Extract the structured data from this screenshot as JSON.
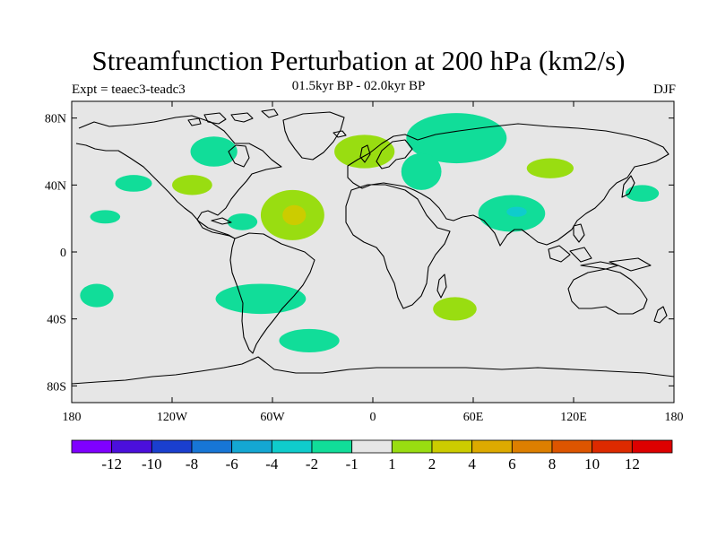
{
  "title": "Streamfunction Perturbation at 200 hPa (km2/s)",
  "subtitle_left": "Expt = teaec3-teadc3",
  "subtitle_center": "01.5kyr BP - 02.0kyr BP",
  "subtitle_right": "DJF",
  "chart_data": {
    "type": "heatmap",
    "projection": "cylindrical-equidistant",
    "xlim": [
      -180,
      180
    ],
    "ylim": [
      -90,
      90
    ],
    "x_ticks": [
      {
        "lon": -180,
        "label": "180"
      },
      {
        "lon": -120,
        "label": "120W"
      },
      {
        "lon": -60,
        "label": "60W"
      },
      {
        "lon": 0,
        "label": "0"
      },
      {
        "lon": 60,
        "label": "60E"
      },
      {
        "lon": 120,
        "label": "120E"
      },
      {
        "lon": 180,
        "label": "180"
      }
    ],
    "y_ticks": [
      {
        "lat": 80,
        "label": "80N"
      },
      {
        "lat": 40,
        "label": "40N"
      },
      {
        "lat": 0,
        "label": "0"
      },
      {
        "lat": -40,
        "label": "40S"
      },
      {
        "lat": -80,
        "label": "80S"
      }
    ],
    "colorbar": {
      "colors": [
        "#7f00ff",
        "#4b0fdc",
        "#1a3fcf",
        "#1776d6",
        "#14a7d3",
        "#0fcccc",
        "#11dd99",
        "#e6e6e6",
        "#99dd11",
        "#cccc00",
        "#ddaa00",
        "#dd7f00",
        "#dd5500",
        "#dd2a00",
        "#dd0000"
      ],
      "tick_labels": [
        "-12",
        "-10",
        "-8",
        "-6",
        "-4",
        "-2",
        "-1",
        "1",
        "2",
        "4",
        "6",
        "8",
        "10",
        "12"
      ]
    },
    "anomalies": [
      {
        "lon": -95,
        "lat": 60,
        "rlon": 14,
        "rlat": 9,
        "level": "-1"
      },
      {
        "lon": -143,
        "lat": 41,
        "rlon": 11,
        "rlat": 5,
        "level": "-1"
      },
      {
        "lon": -160,
        "lat": 21,
        "rlon": 9,
        "rlat": 4,
        "level": "-1"
      },
      {
        "lon": -78,
        "lat": 18,
        "rlon": 9,
        "rlat": 5,
        "level": "-1"
      },
      {
        "lon": -165,
        "lat": -26,
        "rlon": 10,
        "rlat": 7,
        "level": "-1"
      },
      {
        "lon": -67,
        "lat": -28,
        "rlon": 27,
        "rlat": 9,
        "level": "-1"
      },
      {
        "lon": -38,
        "lat": -53,
        "rlon": 18,
        "rlat": 7,
        "level": "-1"
      },
      {
        "lon": 50,
        "lat": 68,
        "rlon": 30,
        "rlat": 15,
        "level": "-1"
      },
      {
        "lon": 29,
        "lat": 48,
        "rlon": 12,
        "rlat": 11,
        "level": "-1"
      },
      {
        "lon": 83,
        "lat": 23,
        "rlon": 20,
        "rlat": 11,
        "level": "-1"
      },
      {
        "lon": 161,
        "lat": 35,
        "rlon": 10,
        "rlat": 5,
        "level": "-1"
      },
      {
        "lon": 86,
        "lat": 24,
        "rlon": 6,
        "rlat": 3,
        "level": "-2"
      },
      {
        "lon": -108,
        "lat": 40,
        "rlon": 12,
        "rlat": 6,
        "level": "1"
      },
      {
        "lon": -48,
        "lat": 22,
        "rlon": 19,
        "rlat": 15,
        "level": "1"
      },
      {
        "lon": -5,
        "lat": 60,
        "rlon": 18,
        "rlat": 10,
        "level": "1"
      },
      {
        "lon": 106,
        "lat": 50,
        "rlon": 14,
        "rlat": 6,
        "level": "1"
      },
      {
        "lon": 49,
        "lat": -34,
        "rlon": 13,
        "rlat": 7,
        "level": "1"
      },
      {
        "lon": -47,
        "lat": 22,
        "rlon": 7,
        "rlat": 6,
        "level": "2"
      }
    ]
  }
}
